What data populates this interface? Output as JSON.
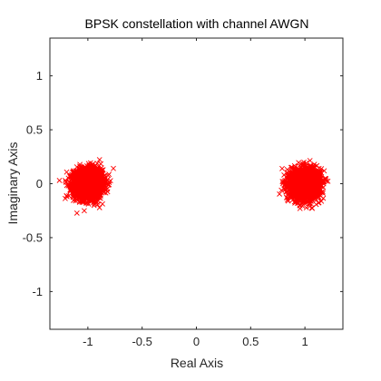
{
  "chart_data": {
    "type": "scatter",
    "title": "BPSK constellation with channel AWGN",
    "xlabel": "Real Axis",
    "ylabel": "Imaginary Axis",
    "xlim": [
      -1.35,
      1.35
    ],
    "ylim": [
      -1.35,
      1.35
    ],
    "xticks": [
      -1,
      -0.5,
      0,
      0.5,
      1
    ],
    "xtick_labels": [
      "-1",
      "-0.5",
      "0",
      "0.5",
      "1"
    ],
    "yticks": [
      -1,
      -0.5,
      0,
      0.5,
      1
    ],
    "ytick_labels": [
      "-1",
      "-0.5",
      "0",
      "0.5",
      "1"
    ],
    "grid": false,
    "marker": "x",
    "marker_color": "#ff0000",
    "clusters": [
      {
        "center": [
          -1,
          0
        ],
        "spread": 0.065
      },
      {
        "center": [
          1,
          0
        ],
        "spread": 0.065
      }
    ],
    "points_per_cluster": 3000
  }
}
